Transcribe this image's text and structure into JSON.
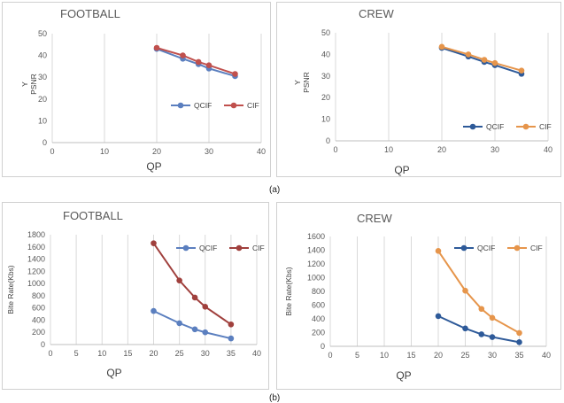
{
  "captions": [
    "(a)",
    "(b)"
  ],
  "chart_data": [
    {
      "type": "line",
      "title": "FOOTBALL",
      "xlabel": "QP",
      "ylabel_lines": [
        "Y",
        "PSNR"
      ],
      "xlim": [
        0,
        40
      ],
      "xticks": [
        0,
        10,
        20,
        30,
        40
      ],
      "ylim": [
        0,
        50
      ],
      "yticks": [
        0,
        10,
        20,
        30,
        40,
        50
      ],
      "grid": "vertical",
      "legend": "right",
      "series": [
        {
          "name": "QCIF",
          "color": "#5b7fbf",
          "x": [
            20,
            25,
            28,
            30,
            35
          ],
          "y": [
            43,
            38.5,
            36,
            34,
            30.5
          ]
        },
        {
          "name": "CIF",
          "color": "#c0504d",
          "x": [
            20,
            25,
            28,
            30,
            35
          ],
          "y": [
            43.5,
            40,
            37,
            35.5,
            31.5
          ]
        }
      ]
    },
    {
      "type": "line",
      "title": "CREW",
      "xlabel": "QP",
      "ylabel_lines": [
        "Y",
        "PSNR"
      ],
      "xlim": [
        0,
        40
      ],
      "xticks": [
        0,
        10,
        20,
        30,
        40
      ],
      "ylim": [
        0,
        50
      ],
      "yticks": [
        0,
        10,
        20,
        30,
        40,
        50
      ],
      "grid": "vertical",
      "legend": "bottom-right",
      "series": [
        {
          "name": "QCIF",
          "color": "#2e5a99",
          "x": [
            20,
            25,
            28,
            30,
            35
          ],
          "y": [
            43,
            39,
            36.5,
            35,
            31
          ]
        },
        {
          "name": "CIF",
          "color": "#e6954b",
          "x": [
            20,
            25,
            28,
            30,
            35
          ],
          "y": [
            43.5,
            40,
            37.5,
            36,
            32.5
          ]
        }
      ]
    },
    {
      "type": "line",
      "title": "FOOTBALL",
      "xlabel": "QP",
      "ylabel_lines": [
        "Bite Rate(Kbs)"
      ],
      "xlim": [
        0,
        40
      ],
      "xticks": [
        0,
        5,
        10,
        15,
        20,
        25,
        30,
        35,
        40
      ],
      "ylim": [
        0,
        1800
      ],
      "yticks": [
        0,
        200,
        400,
        600,
        800,
        1000,
        1200,
        1400,
        1600,
        1800
      ],
      "grid": "vertical",
      "legend": "top-right",
      "series": [
        {
          "name": "QCIF",
          "color": "#5b7fbf",
          "x": [
            20,
            25,
            28,
            30,
            35
          ],
          "y": [
            550,
            350,
            250,
            200,
            100
          ]
        },
        {
          "name": "CIF",
          "color": "#a0403d",
          "x": [
            20,
            25,
            28,
            30,
            35
          ],
          "y": [
            1660,
            1050,
            770,
            620,
            330
          ]
        }
      ]
    },
    {
      "type": "line",
      "title": "CREW",
      "xlabel": "QP",
      "ylabel_lines": [
        "Bite Rate(Kbs)"
      ],
      "xlim": [
        0,
        40
      ],
      "xticks": [
        0,
        5,
        10,
        15,
        20,
        25,
        30,
        35,
        40
      ],
      "ylim": [
        0,
        1600
      ],
      "yticks": [
        0,
        200,
        400,
        600,
        800,
        1000,
        1200,
        1400,
        1600
      ],
      "grid": "vertical",
      "legend": "top-right",
      "series": [
        {
          "name": "QCIF",
          "color": "#2e5a99",
          "x": [
            20,
            25,
            28,
            30,
            35
          ],
          "y": [
            440,
            260,
            175,
            135,
            60
          ]
        },
        {
          "name": "CIF",
          "color": "#e6954b",
          "x": [
            20,
            25,
            28,
            30,
            35
          ],
          "y": [
            1390,
            810,
            545,
            415,
            195
          ]
        }
      ]
    }
  ]
}
